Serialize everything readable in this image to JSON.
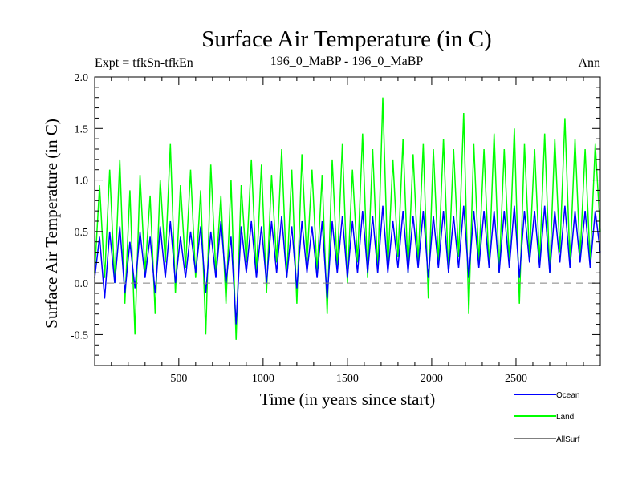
{
  "chart_data": {
    "type": "line",
    "title": "Surface Air Temperature (in C)",
    "subtitle_left": "Expt = tfkSn-tfkEn",
    "subtitle_center": "196_0_MaBP - 196_0_MaBP",
    "subtitle_right": "Ann",
    "xlabel": "Time (in years since start)",
    "ylabel": "Surface Air Temperature (in C)",
    "xlim": [
      1,
      3000
    ],
    "ylim": [
      -0.8,
      2.0
    ],
    "x_ticks": [
      500,
      1000,
      1500,
      2000,
      2500
    ],
    "x_tick_labels": [
      "500",
      "1000",
      "1500",
      "2000",
      "2500"
    ],
    "y_ticks": [
      -0.5,
      0.0,
      0.5,
      1.0,
      1.5,
      2.0
    ],
    "y_tick_labels": [
      "-0.5",
      "0.0",
      "0.5",
      "1.0",
      "1.5",
      "2.0"
    ],
    "reference_line": {
      "y": 0.0,
      "style": "dashed",
      "color": "#808080"
    },
    "colors": {
      "Ocean": "#0000ff",
      "Land": "#00ff00",
      "AllSurf": "#000000"
    },
    "legend_location": "below-right",
    "legend": [
      {
        "name": "Ocean",
        "color": "#0000ff"
      },
      {
        "name": "Land",
        "color": "#00ff00"
      },
      {
        "name": "AllSurf",
        "color": "#000000"
      }
    ],
    "series": [
      {
        "name": "Land",
        "color": "#00ff00",
        "description": "noisy annual series, mean rising from ~0.45 to ~0.75",
        "x": [
          1,
          30,
          60,
          90,
          120,
          150,
          180,
          210,
          240,
          270,
          300,
          330,
          360,
          390,
          420,
          450,
          480,
          510,
          540,
          570,
          600,
          630,
          660,
          690,
          720,
          750,
          780,
          810,
          840,
          870,
          900,
          930,
          960,
          990,
          1020,
          1050,
          1080,
          1110,
          1140,
          1170,
          1200,
          1230,
          1260,
          1290,
          1320,
          1350,
          1380,
          1410,
          1440,
          1470,
          1500,
          1530,
          1560,
          1590,
          1620,
          1650,
          1680,
          1710,
          1740,
          1770,
          1800,
          1830,
          1860,
          1890,
          1920,
          1950,
          1980,
          2010,
          2040,
          2070,
          2100,
          2130,
          2160,
          2190,
          2220,
          2250,
          2280,
          2310,
          2340,
          2370,
          2400,
          2430,
          2460,
          2490,
          2520,
          2550,
          2580,
          2610,
          2640,
          2670,
          2700,
          2730,
          2760,
          2790,
          2820,
          2850,
          2880,
          2910,
          2940,
          2970,
          3000
        ],
        "values": [
          0.1,
          0.95,
          0.05,
          1.1,
          0.0,
          1.2,
          -0.2,
          0.9,
          -0.5,
          1.05,
          0.1,
          0.85,
          -0.3,
          1.0,
          0.2,
          1.35,
          -0.1,
          0.95,
          0.15,
          1.1,
          0.05,
          0.9,
          -0.5,
          1.15,
          0.1,
          0.85,
          -0.2,
          1.0,
          -0.55,
          0.95,
          0.2,
          1.2,
          0.1,
          1.15,
          -0.1,
          1.05,
          0.2,
          1.3,
          0.05,
          1.1,
          -0.2,
          1.25,
          0.2,
          1.1,
          0.1,
          1.05,
          -0.3,
          1.2,
          0.15,
          1.35,
          0.0,
          1.1,
          0.2,
          1.45,
          0.05,
          1.3,
          0.1,
          1.8,
          0.15,
          1.2,
          0.25,
          1.4,
          0.1,
          1.25,
          0.2,
          1.35,
          -0.15,
          1.3,
          0.2,
          1.4,
          0.1,
          1.3,
          0.25,
          1.65,
          -0.3,
          1.35,
          0.2,
          1.3,
          0.15,
          1.45,
          0.1,
          1.3,
          0.2,
          1.5,
          -0.2,
          1.35,
          0.25,
          1.3,
          0.2,
          1.45,
          0.1,
          1.4,
          0.3,
          1.6,
          0.2,
          1.4,
          0.25,
          1.3,
          0.2,
          1.35,
          0.5
        ]
      },
      {
        "name": "Ocean",
        "color": "#0000ff",
        "description": "noisy annual series, mean rising from ~0.2 to ~0.4",
        "x": [
          1,
          30,
          60,
          90,
          120,
          150,
          180,
          210,
          240,
          270,
          300,
          330,
          360,
          390,
          420,
          450,
          480,
          510,
          540,
          570,
          600,
          630,
          660,
          690,
          720,
          750,
          780,
          810,
          840,
          870,
          900,
          930,
          960,
          990,
          1020,
          1050,
          1080,
          1110,
          1140,
          1170,
          1200,
          1230,
          1260,
          1290,
          1320,
          1350,
          1380,
          1410,
          1440,
          1470,
          1500,
          1530,
          1560,
          1590,
          1620,
          1650,
          1680,
          1710,
          1740,
          1770,
          1800,
          1830,
          1860,
          1890,
          1920,
          1950,
          1980,
          2010,
          2040,
          2070,
          2100,
          2130,
          2160,
          2190,
          2220,
          2250,
          2280,
          2310,
          2340,
          2370,
          2400,
          2430,
          2460,
          2490,
          2520,
          2550,
          2580,
          2610,
          2640,
          2670,
          2700,
          2730,
          2760,
          2790,
          2820,
          2850,
          2880,
          2910,
          2940,
          2970,
          3000
        ],
        "values": [
          0.05,
          0.45,
          -0.15,
          0.5,
          0.0,
          0.55,
          -0.1,
          0.4,
          -0.05,
          0.5,
          0.05,
          0.45,
          -0.1,
          0.55,
          0.05,
          0.6,
          0.0,
          0.45,
          0.05,
          0.5,
          0.1,
          0.55,
          -0.1,
          0.5,
          0.05,
          0.6,
          0.0,
          0.45,
          -0.4,
          0.55,
          0.1,
          0.6,
          0.05,
          0.55,
          0.0,
          0.6,
          0.1,
          0.65,
          0.05,
          0.55,
          -0.05,
          0.6,
          0.1,
          0.55,
          0.05,
          0.6,
          -0.15,
          0.6,
          0.1,
          0.65,
          0.05,
          0.6,
          0.1,
          0.7,
          0.1,
          0.65,
          0.1,
          0.75,
          0.1,
          0.6,
          0.15,
          0.7,
          0.1,
          0.65,
          0.15,
          0.7,
          0.05,
          0.65,
          0.15,
          0.7,
          0.1,
          0.65,
          0.15,
          0.75,
          0.05,
          0.7,
          0.15,
          0.7,
          0.15,
          0.7,
          0.1,
          0.7,
          0.15,
          0.75,
          0.05,
          0.7,
          0.2,
          0.7,
          0.15,
          0.75,
          0.1,
          0.7,
          0.2,
          0.75,
          0.15,
          0.7,
          0.2,
          0.7,
          0.15,
          0.7,
          0.3
        ]
      },
      {
        "name": "AllSurf",
        "color": "#000000",
        "x": [],
        "values": []
      }
    ]
  }
}
